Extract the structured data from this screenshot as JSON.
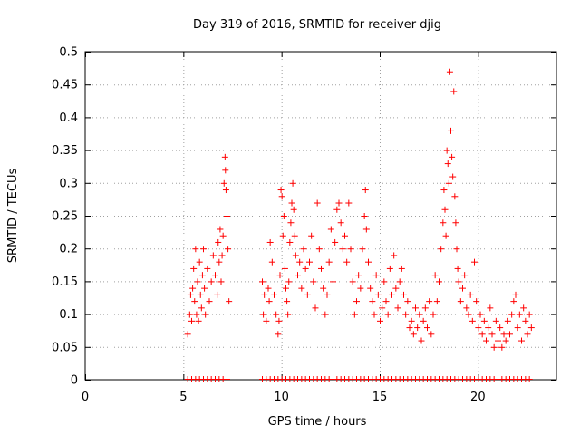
{
  "chart_data": {
    "type": "scatter",
    "title": "Day 319 of 2016, SRMTID for receiver djig",
    "xlabel": "GPS time / hours",
    "ylabel": "SRMTID / TECUs",
    "xlim": [
      0,
      24
    ],
    "ylim": [
      0,
      0.5
    ],
    "x_ticks": [
      0,
      5,
      10,
      15,
      20
    ],
    "y_ticks": [
      0,
      0.05,
      0.1,
      0.15,
      0.2,
      0.25,
      0.3,
      0.35,
      0.4,
      0.45,
      0.5
    ],
    "x_tick_labels": [
      "0",
      "5",
      "10",
      "15",
      "20"
    ],
    "y_tick_labels": [
      "0",
      "0.05",
      "0.1",
      "0.15",
      "0.2",
      "0.25",
      "0.3",
      "0.35",
      "0.4",
      "0.45",
      "0.5"
    ],
    "grid": true,
    "marker": "+",
    "color": "#ff0000",
    "series": [
      {
        "name": "SRMTID",
        "points": [
          [
            5.2,
            0.07
          ],
          [
            5.3,
            0.1
          ],
          [
            5.35,
            0.13
          ],
          [
            5.4,
            0.09
          ],
          [
            5.45,
            0.14
          ],
          [
            5.5,
            0.17
          ],
          [
            5.55,
            0.12
          ],
          [
            5.6,
            0.2
          ],
          [
            5.65,
            0.1
          ],
          [
            5.7,
            0.15
          ],
          [
            5.75,
            0.09
          ],
          [
            5.8,
            0.18
          ],
          [
            5.85,
            0.13
          ],
          [
            5.9,
            0.11
          ],
          [
            5.95,
            0.16
          ],
          [
            6.0,
            0.2
          ],
          [
            6.05,
            0.14
          ],
          [
            6.1,
            0.1
          ],
          [
            6.2,
            0.17
          ],
          [
            6.3,
            0.12
          ],
          [
            6.4,
            0.15
          ],
          [
            6.5,
            0.19
          ],
          [
            6.6,
            0.16
          ],
          [
            6.7,
            0.13
          ],
          [
            6.75,
            0.21
          ],
          [
            6.8,
            0.18
          ],
          [
            6.85,
            0.23
          ],
          [
            6.9,
            0.15
          ],
          [
            6.95,
            0.19
          ],
          [
            7.0,
            0.22
          ],
          [
            7.05,
            0.3
          ],
          [
            7.1,
            0.34
          ],
          [
            7.12,
            0.32
          ],
          [
            7.15,
            0.29
          ],
          [
            7.2,
            0.25
          ],
          [
            7.25,
            0.2
          ],
          [
            7.3,
            0.12
          ],
          [
            9.0,
            0.15
          ],
          [
            9.05,
            0.1
          ],
          [
            9.1,
            0.13
          ],
          [
            9.2,
            0.09
          ],
          [
            9.3,
            0.14
          ],
          [
            9.35,
            0.12
          ],
          [
            9.4,
            0.21
          ],
          [
            9.5,
            0.18
          ],
          [
            9.6,
            0.13
          ],
          [
            9.7,
            0.1
          ],
          [
            9.8,
            0.07
          ],
          [
            9.85,
            0.09
          ],
          [
            9.9,
            0.16
          ],
          [
            9.95,
            0.29
          ],
          [
            10.0,
            0.28
          ],
          [
            10.05,
            0.22
          ],
          [
            10.1,
            0.25
          ],
          [
            10.15,
            0.17
          ],
          [
            10.2,
            0.14
          ],
          [
            10.25,
            0.12
          ],
          [
            10.3,
            0.1
          ],
          [
            10.35,
            0.15
          ],
          [
            10.4,
            0.21
          ],
          [
            10.45,
            0.24
          ],
          [
            10.5,
            0.27
          ],
          [
            10.55,
            0.3
          ],
          [
            10.6,
            0.26
          ],
          [
            10.65,
            0.22
          ],
          [
            10.7,
            0.19
          ],
          [
            10.8,
            0.16
          ],
          [
            10.9,
            0.18
          ],
          [
            11.0,
            0.14
          ],
          [
            11.1,
            0.2
          ],
          [
            11.2,
            0.17
          ],
          [
            11.3,
            0.13
          ],
          [
            11.4,
            0.18
          ],
          [
            11.5,
            0.22
          ],
          [
            11.6,
            0.15
          ],
          [
            11.7,
            0.11
          ],
          [
            11.8,
            0.27
          ],
          [
            11.9,
            0.2
          ],
          [
            12.0,
            0.17
          ],
          [
            12.1,
            0.14
          ],
          [
            12.2,
            0.1
          ],
          [
            12.3,
            0.13
          ],
          [
            12.4,
            0.18
          ],
          [
            12.5,
            0.23
          ],
          [
            12.6,
            0.15
          ],
          [
            12.7,
            0.21
          ],
          [
            12.8,
            0.26
          ],
          [
            12.9,
            0.27
          ],
          [
            13.0,
            0.24
          ],
          [
            13.1,
            0.2
          ],
          [
            13.2,
            0.22
          ],
          [
            13.3,
            0.18
          ],
          [
            13.4,
            0.27
          ],
          [
            13.5,
            0.2
          ],
          [
            13.6,
            0.15
          ],
          [
            13.7,
            0.1
          ],
          [
            13.8,
            0.12
          ],
          [
            13.9,
            0.16
          ],
          [
            14.0,
            0.14
          ],
          [
            14.1,
            0.2
          ],
          [
            14.2,
            0.25
          ],
          [
            14.25,
            0.29
          ],
          [
            14.3,
            0.23
          ],
          [
            14.4,
            0.18
          ],
          [
            14.5,
            0.14
          ],
          [
            14.6,
            0.12
          ],
          [
            14.7,
            0.1
          ],
          [
            14.8,
            0.16
          ],
          [
            14.9,
            0.13
          ],
          [
            15.0,
            0.09
          ],
          [
            15.1,
            0.11
          ],
          [
            15.2,
            0.15
          ],
          [
            15.3,
            0.12
          ],
          [
            15.4,
            0.1
          ],
          [
            15.5,
            0.17
          ],
          [
            15.6,
            0.13
          ],
          [
            15.7,
            0.19
          ],
          [
            15.8,
            0.14
          ],
          [
            15.9,
            0.11
          ],
          [
            16.0,
            0.15
          ],
          [
            16.1,
            0.17
          ],
          [
            16.2,
            0.13
          ],
          [
            16.3,
            0.1
          ],
          [
            16.4,
            0.12
          ],
          [
            16.5,
            0.08
          ],
          [
            16.6,
            0.09
          ],
          [
            16.7,
            0.07
          ],
          [
            16.8,
            0.11
          ],
          [
            16.9,
            0.08
          ],
          [
            17.0,
            0.1
          ],
          [
            17.1,
            0.06
          ],
          [
            17.2,
            0.09
          ],
          [
            17.3,
            0.11
          ],
          [
            17.4,
            0.08
          ],
          [
            17.5,
            0.12
          ],
          [
            17.6,
            0.07
          ],
          [
            17.7,
            0.1
          ],
          [
            17.8,
            0.16
          ],
          [
            17.9,
            0.12
          ],
          [
            18.0,
            0.15
          ],
          [
            18.1,
            0.2
          ],
          [
            18.2,
            0.24
          ],
          [
            18.25,
            0.29
          ],
          [
            18.3,
            0.26
          ],
          [
            18.35,
            0.22
          ],
          [
            18.4,
            0.35
          ],
          [
            18.45,
            0.33
          ],
          [
            18.5,
            0.3
          ],
          [
            18.55,
            0.47
          ],
          [
            18.6,
            0.38
          ],
          [
            18.65,
            0.34
          ],
          [
            18.7,
            0.31
          ],
          [
            18.75,
            0.44
          ],
          [
            18.8,
            0.28
          ],
          [
            18.85,
            0.24
          ],
          [
            18.9,
            0.2
          ],
          [
            18.95,
            0.17
          ],
          [
            19.0,
            0.15
          ],
          [
            19.1,
            0.12
          ],
          [
            19.2,
            0.14
          ],
          [
            19.3,
            0.16
          ],
          [
            19.4,
            0.11
          ],
          [
            19.5,
            0.1
          ],
          [
            19.6,
            0.13
          ],
          [
            19.7,
            0.09
          ],
          [
            19.8,
            0.18
          ],
          [
            19.9,
            0.12
          ],
          [
            20.0,
            0.08
          ],
          [
            20.1,
            0.1
          ],
          [
            20.2,
            0.07
          ],
          [
            20.3,
            0.09
          ],
          [
            20.4,
            0.06
          ],
          [
            20.5,
            0.08
          ],
          [
            20.6,
            0.11
          ],
          [
            20.7,
            0.07
          ],
          [
            20.8,
            0.05
          ],
          [
            20.9,
            0.09
          ],
          [
            21.0,
            0.06
          ],
          [
            21.1,
            0.08
          ],
          [
            21.2,
            0.05
          ],
          [
            21.3,
            0.07
          ],
          [
            21.4,
            0.06
          ],
          [
            21.5,
            0.09
          ],
          [
            21.6,
            0.07
          ],
          [
            21.7,
            0.1
          ],
          [
            21.8,
            0.12
          ],
          [
            21.9,
            0.13
          ],
          [
            22.0,
            0.08
          ],
          [
            22.1,
            0.1
          ],
          [
            22.2,
            0.06
          ],
          [
            22.3,
            0.11
          ],
          [
            22.4,
            0.09
          ],
          [
            22.5,
            0.07
          ],
          [
            22.6,
            0.1
          ],
          [
            22.7,
            0.08
          ]
        ],
        "zero_points": [
          5.2,
          5.4,
          5.6,
          5.8,
          6.0,
          6.2,
          6.4,
          6.6,
          6.8,
          7.0,
          7.2,
          9.0,
          9.2,
          9.4,
          9.6,
          9.8,
          10.0,
          10.2,
          10.4,
          10.6,
          10.8,
          11.0,
          11.2,
          11.4,
          11.6,
          11.8,
          12.0,
          12.2,
          12.4,
          12.6,
          12.8,
          13.0,
          13.2,
          13.4,
          13.6,
          13.8,
          14.0,
          14.2,
          14.4,
          14.6,
          14.8,
          15.0,
          15.2,
          15.4,
          15.6,
          15.8,
          16.0,
          16.2,
          16.4,
          16.6,
          16.8,
          17.0,
          17.2,
          17.4,
          17.6,
          17.8,
          18.0,
          18.2,
          18.4,
          18.6,
          18.8,
          19.0,
          19.2,
          19.4,
          19.6,
          19.8,
          20.0,
          20.2,
          20.4,
          20.6,
          20.8,
          21.0,
          21.2,
          21.4,
          21.6,
          21.8,
          22.0,
          22.2,
          22.4,
          22.6
        ]
      }
    ]
  }
}
